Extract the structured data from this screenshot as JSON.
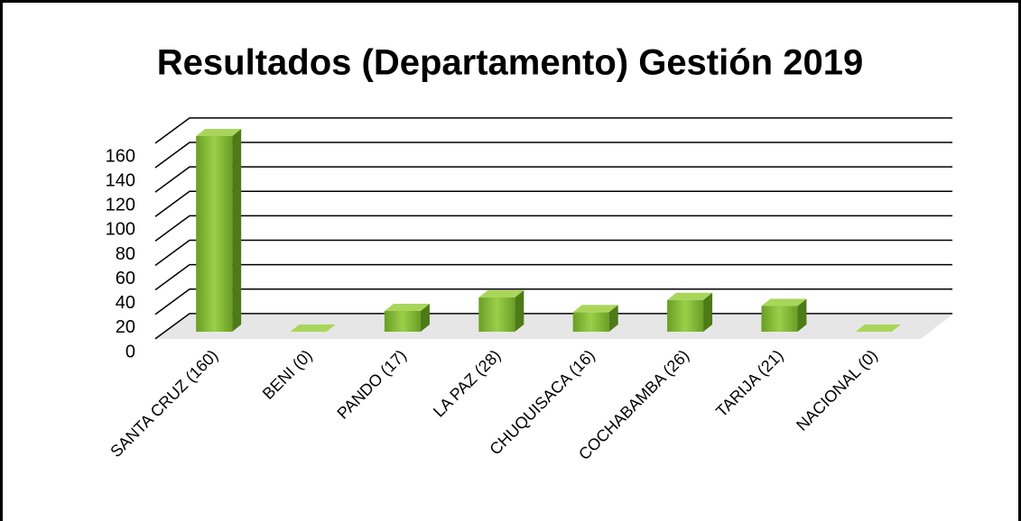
{
  "chart_data": {
    "type": "bar3d",
    "title": "Resultados (Departamento) Gestión 2019",
    "categories": [
      "SANTA CRUZ  (160)",
      "BENI (0)",
      "PANDO  (17)",
      "LA PAZ  (28)",
      "CHUQUISACA  (16)",
      "COCHABAMBA (26)",
      "TARIJA  (21)",
      "NACIONAL (0)"
    ],
    "values": [
      160,
      0,
      17,
      28,
      16,
      26,
      21,
      0
    ],
    "color": "#7fb332",
    "ylim": [
      0,
      180
    ],
    "yticks": [
      0,
      20,
      40,
      60,
      80,
      100,
      120,
      140,
      160
    ],
    "grid": true
  }
}
